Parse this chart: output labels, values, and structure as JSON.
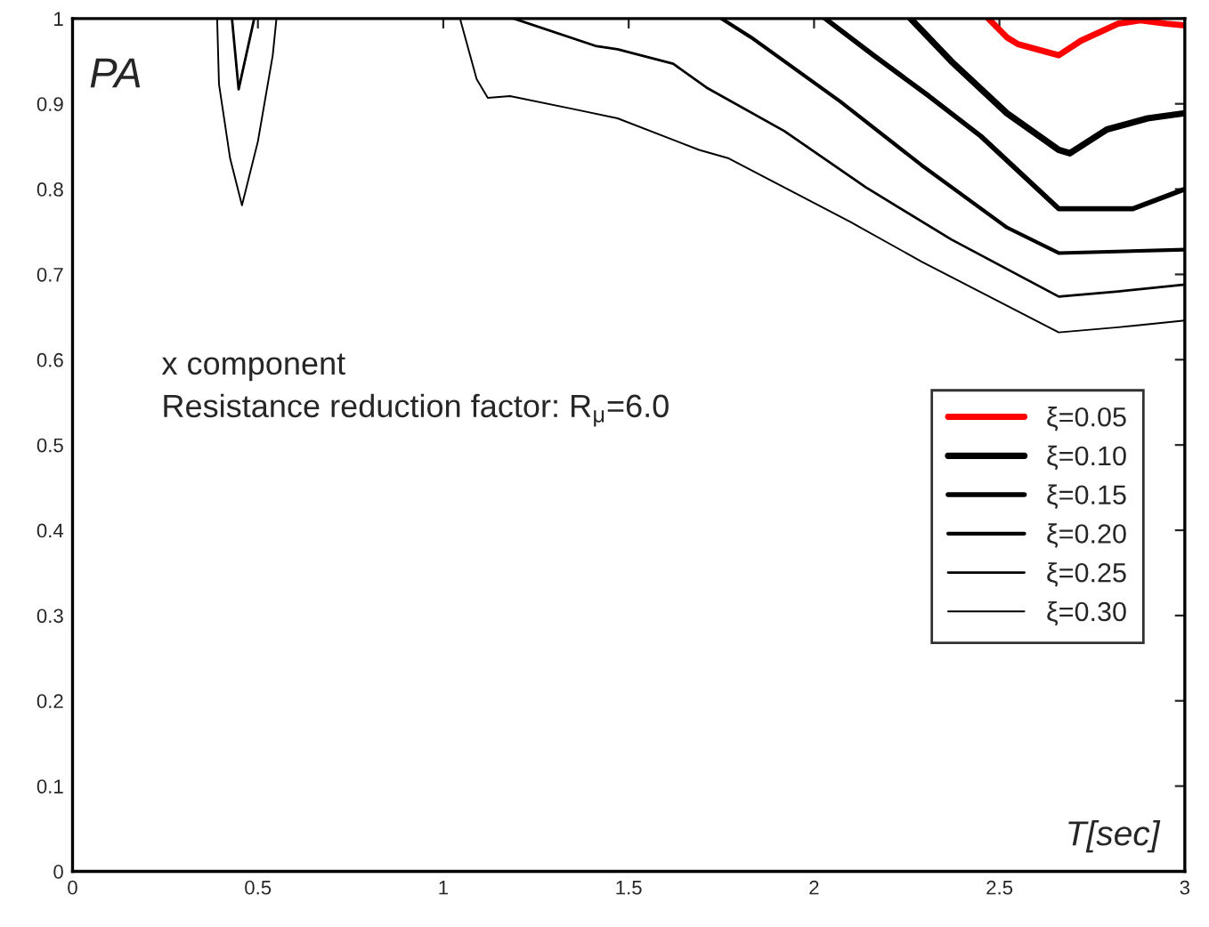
{
  "chart_data": {
    "type": "line",
    "xlabel": "T[sec]",
    "annotations": [
      "PA",
      "x component",
      "Resistance reduction factor: R$_{μ}$=6.0"
    ],
    "xlim": [
      0,
      3
    ],
    "ylim": [
      0,
      1
    ],
    "xticks": [
      0,
      0.5,
      1,
      1.5,
      2,
      2.5,
      3
    ],
    "yticks": [
      0,
      0.1,
      0.2,
      0.3,
      0.4,
      0.5,
      0.6,
      0.7,
      0.8,
      0.9,
      1
    ],
    "grid": false,
    "legend": "right",
    "marker": "none",
    "line_style": "solid",
    "series": [
      {
        "name": "ξ=0.05",
        "color": "#ff0000",
        "x": [
          2.47,
          2.52,
          2.55,
          2.66,
          2.72,
          2.82,
          2.88,
          2.95,
          3.0
        ],
        "values": [
          1,
          0.978,
          0.97,
          0.957,
          0.974,
          0.994,
          0.998,
          0.994,
          0.992
        ]
      },
      {
        "name": "ξ=0.10",
        "color": "#000000",
        "x": [
          2.26,
          2.37,
          2.52,
          2.66,
          2.69,
          2.79,
          2.9,
          3.0
        ],
        "values": [
          1,
          0.95,
          0.889,
          0.846,
          0.842,
          0.87,
          0.883,
          0.889
        ]
      },
      {
        "name": "ξ=0.15",
        "color": "#000000",
        "x": [
          2.03,
          2.16,
          2.31,
          2.45,
          2.66,
          2.86,
          3.0
        ],
        "values": [
          1,
          0.957,
          0.909,
          0.862,
          0.777,
          0.777,
          0.8
        ]
      },
      {
        "name": "ξ=0.20",
        "color": "#000000",
        "x": [
          1.75,
          1.83,
          2.07,
          2.29,
          2.52,
          2.66,
          3.0
        ],
        "values": [
          1,
          0.978,
          0.903,
          0.828,
          0.755,
          0.725,
          0.729
        ]
      },
      {
        "name": "ξ=0.25",
        "color": "#000000",
        "x": [
          0.43,
          0.448,
          0.49,
          0.8,
          1.19,
          1.41,
          1.47,
          1.62,
          1.71,
          1.92,
          2.14,
          2.37,
          2.66,
          2.82,
          3.0
        ],
        "values": [
          1,
          0.917,
          1,
          null,
          1,
          0.968,
          0.964,
          0.947,
          0.919,
          0.868,
          0.802,
          0.741,
          0.674,
          0.68,
          0.688
        ]
      },
      {
        "name": "ξ=0.30",
        "color": "#000000",
        "x": [
          0.39,
          0.395,
          0.425,
          0.457,
          0.5,
          0.54,
          0.55,
          0.8,
          1.045,
          1.09,
          1.12,
          1.18,
          1.36,
          1.47,
          1.69,
          1.77,
          2.1,
          2.29,
          2.66,
          2.82,
          3.0
        ],
        "values": [
          1,
          0.923,
          0.836,
          0.781,
          0.856,
          0.957,
          1,
          null,
          1,
          0.929,
          0.907,
          0.909,
          0.893,
          0.883,
          0.846,
          0.836,
          0.761,
          0.715,
          0.632,
          0.638,
          0.646
        ]
      }
    ]
  }
}
